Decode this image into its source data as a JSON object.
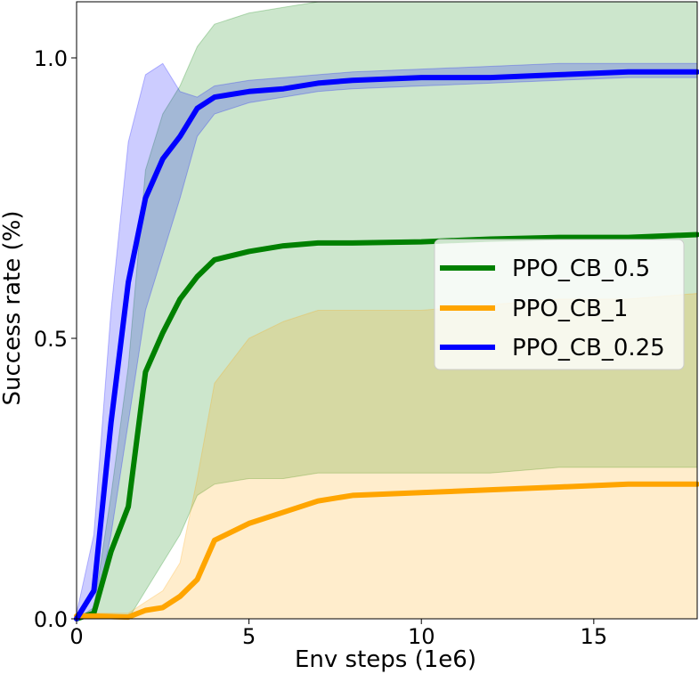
{
  "chart_data": {
    "type": "line",
    "title": "",
    "xlabel": "Env steps (1e6)",
    "ylabel": "Success rate (%)",
    "xlim": [
      0,
      18
    ],
    "ylim": [
      0,
      1.1
    ],
    "xticks": [
      0,
      5,
      10,
      15
    ],
    "yticks": [
      0.0,
      0.5,
      1.0
    ],
    "xtick_labels": [
      "0",
      "5",
      "10",
      "15"
    ],
    "ytick_labels": [
      "0.0",
      "0.5",
      "1.0"
    ],
    "grid": false,
    "legend_position": "center-right",
    "series": [
      {
        "name": "PPO_CB_0.5",
        "color": "#008000",
        "x": [
          0,
          0.5,
          1.0,
          1.5,
          2.0,
          2.5,
          3.0,
          3.5,
          4.0,
          5.0,
          6.0,
          7.0,
          8.0,
          10.0,
          12.0,
          14.0,
          16.0,
          18.0
        ],
        "y": [
          0,
          0.01,
          0.12,
          0.2,
          0.44,
          0.51,
          0.57,
          0.61,
          0.64,
          0.655,
          0.665,
          0.67,
          0.67,
          0.672,
          0.677,
          0.68,
          0.68,
          0.685
        ],
        "upper": [
          0,
          0.02,
          0.22,
          0.45,
          0.8,
          0.9,
          0.95,
          1.02,
          1.06,
          1.08,
          1.09,
          1.1,
          1.1,
          1.1,
          1.1,
          1.1,
          1.1,
          1.1
        ],
        "lower": [
          0,
          0.0,
          0.0,
          0.0,
          0.05,
          0.1,
          0.15,
          0.22,
          0.24,
          0.25,
          0.25,
          0.26,
          0.26,
          0.26,
          0.26,
          0.27,
          0.27,
          0.27
        ]
      },
      {
        "name": "PPO_CB_1",
        "color": "#FFA500",
        "x": [
          0,
          0.5,
          1.0,
          1.5,
          2.0,
          2.5,
          3.0,
          3.5,
          4.0,
          5.0,
          6.0,
          7.0,
          8.0,
          10.0,
          12.0,
          14.0,
          16.0,
          18.0
        ],
        "y": [
          0.005,
          0.005,
          0.004,
          0.003,
          0.015,
          0.02,
          0.04,
          0.07,
          0.14,
          0.17,
          0.19,
          0.21,
          0.22,
          0.225,
          0.23,
          0.235,
          0.24,
          0.24
        ],
        "upper": [
          0.01,
          0.01,
          0.01,
          0.01,
          0.03,
          0.05,
          0.1,
          0.25,
          0.42,
          0.5,
          0.53,
          0.55,
          0.55,
          0.55,
          0.56,
          0.57,
          0.57,
          0.58
        ],
        "lower": [
          0,
          0,
          0,
          0,
          0,
          0,
          0,
          0,
          0,
          0,
          0,
          0,
          0,
          0,
          0,
          0,
          0,
          0
        ]
      },
      {
        "name": "PPO_CB_0.25",
        "color": "#0000FF",
        "x": [
          0,
          0.5,
          1.0,
          1.5,
          2.0,
          2.5,
          3.0,
          3.5,
          4.0,
          5.0,
          6.0,
          7.0,
          8.0,
          10.0,
          12.0,
          14.0,
          16.0,
          18.0
        ],
        "y": [
          0,
          0.05,
          0.35,
          0.6,
          0.75,
          0.82,
          0.86,
          0.91,
          0.93,
          0.94,
          0.945,
          0.955,
          0.96,
          0.965,
          0.965,
          0.97,
          0.975,
          0.975
        ],
        "upper": [
          0.01,
          0.15,
          0.55,
          0.85,
          0.97,
          0.99,
          0.94,
          0.93,
          0.95,
          0.96,
          0.965,
          0.97,
          0.975,
          0.98,
          0.985,
          0.99,
          0.99,
          0.99
        ],
        "lower": [
          0,
          0.0,
          0.15,
          0.35,
          0.55,
          0.65,
          0.75,
          0.86,
          0.9,
          0.92,
          0.93,
          0.94,
          0.945,
          0.95,
          0.955,
          0.96,
          0.965,
          0.965
        ]
      }
    ]
  }
}
